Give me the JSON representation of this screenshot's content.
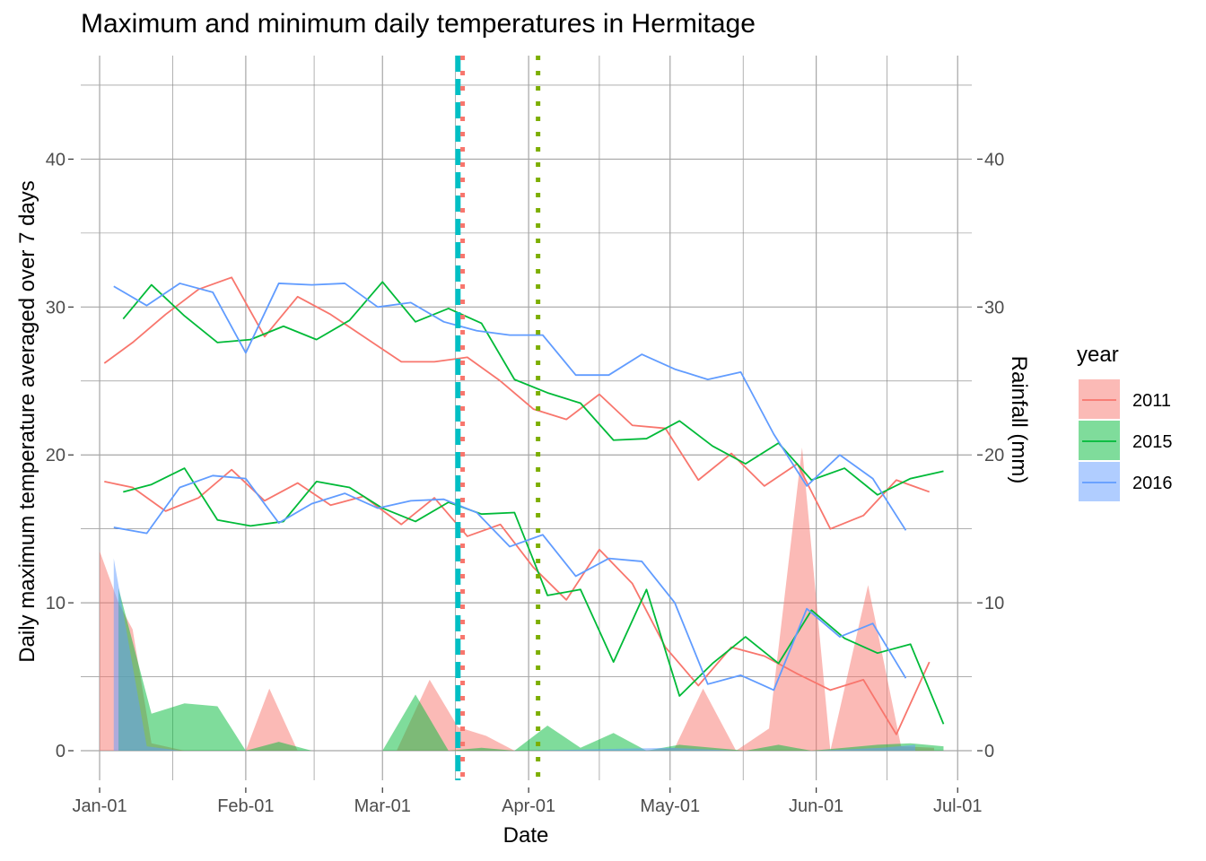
{
  "chart_data": {
    "type": "line",
    "title": "Maximum and minimum daily temperatures in Hermitage",
    "xlabel": "Date",
    "ylabel": "Daily maximum temperature averaged over 7 days",
    "y2label": "Rainfall (mm)",
    "x_axis": {
      "type": "date",
      "range": [
        "2015-12-28",
        "2016-07-04"
      ],
      "ticks": [
        {
          "date": "2016-01-01",
          "label": "Jan-01"
        },
        {
          "date": "2016-02-01",
          "label": "Feb-01"
        },
        {
          "date": "2016-03-01",
          "label": "Mar-01"
        },
        {
          "date": "2016-04-01",
          "label": "Apr-01"
        },
        {
          "date": "2016-05-01",
          "label": "May-01"
        },
        {
          "date": "2016-06-01",
          "label": "Jun-01"
        },
        {
          "date": "2016-07-01",
          "label": "Jul-01"
        }
      ]
    },
    "y_axis": {
      "range": [
        -2,
        47
      ],
      "ticks": [
        0,
        10,
        20,
        30,
        40
      ]
    },
    "y2_axis": {
      "range": [
        -2,
        47
      ],
      "ticks": [
        0,
        10,
        20,
        30,
        40
      ]
    },
    "grid": true,
    "legend": {
      "title": "year",
      "position": "right",
      "entries": [
        {
          "label": "2011",
          "color": "#F8766D"
        },
        {
          "label": "2015",
          "color": "#00BA38"
        },
        {
          "label": "2016",
          "color": "#619CFF"
        }
      ]
    },
    "vlines": [
      {
        "date": "2016-03-17",
        "color": "#00BFC4",
        "style": "dashed"
      },
      {
        "date": "2016-03-18",
        "color": "#F8766D",
        "style": "dotted"
      },
      {
        "date": "2016-04-03",
        "color": "#7CAE00",
        "style": "dotted"
      }
    ],
    "series": [
      {
        "name": "2011",
        "kind": "max",
        "color": "#F8766D",
        "points": [
          [
            "2016-01-02",
            26.2
          ],
          [
            "2016-01-08",
            27.6
          ],
          [
            "2016-01-15",
            29.5
          ],
          [
            "2016-01-22",
            31.2
          ],
          [
            "2016-01-29",
            32.0
          ],
          [
            "2016-02-05",
            28.0
          ],
          [
            "2016-02-12",
            30.7
          ],
          [
            "2016-02-19",
            29.5
          ],
          [
            "2016-02-26",
            28.0
          ],
          [
            "2016-03-05",
            26.3
          ],
          [
            "2016-03-12",
            26.3
          ],
          [
            "2016-03-19",
            26.6
          ],
          [
            "2016-03-26",
            25.0
          ],
          [
            "2016-04-02",
            23.1
          ],
          [
            "2016-04-09",
            22.4
          ],
          [
            "2016-04-16",
            24.1
          ],
          [
            "2016-04-23",
            22.0
          ],
          [
            "2016-04-30",
            21.8
          ],
          [
            "2016-05-07",
            18.3
          ],
          [
            "2016-05-14",
            20.1
          ],
          [
            "2016-05-21",
            17.9
          ],
          [
            "2016-05-28",
            19.4
          ],
          [
            "2016-06-04",
            15.0
          ],
          [
            "2016-06-11",
            15.9
          ],
          [
            "2016-06-18",
            18.3
          ],
          [
            "2016-06-25",
            17.5
          ]
        ]
      },
      {
        "name": "2015",
        "kind": "max",
        "color": "#00BA38",
        "points": [
          [
            "2016-01-06",
            29.2
          ],
          [
            "2016-01-12",
            31.5
          ],
          [
            "2016-01-19",
            29.4
          ],
          [
            "2016-01-26",
            27.6
          ],
          [
            "2016-02-02",
            27.8
          ],
          [
            "2016-02-09",
            28.7
          ],
          [
            "2016-02-16",
            27.8
          ],
          [
            "2016-02-23",
            29.1
          ],
          [
            "2016-03-01",
            31.7
          ],
          [
            "2016-03-08",
            29.0
          ],
          [
            "2016-03-15",
            29.9
          ],
          [
            "2016-03-22",
            28.9
          ],
          [
            "2016-03-29",
            25.1
          ],
          [
            "2016-04-05",
            24.2
          ],
          [
            "2016-04-12",
            23.5
          ],
          [
            "2016-04-19",
            21.0
          ],
          [
            "2016-04-26",
            21.1
          ],
          [
            "2016-05-03",
            22.3
          ],
          [
            "2016-05-10",
            20.6
          ],
          [
            "2016-05-17",
            19.4
          ],
          [
            "2016-05-24",
            20.8
          ],
          [
            "2016-05-31",
            18.3
          ],
          [
            "2016-06-07",
            19.1
          ],
          [
            "2016-06-14",
            17.3
          ],
          [
            "2016-06-21",
            18.4
          ],
          [
            "2016-06-28",
            18.9
          ]
        ]
      },
      {
        "name": "2016",
        "kind": "max",
        "color": "#619CFF",
        "points": [
          [
            "2016-01-04",
            31.4
          ],
          [
            "2016-01-11",
            30.1
          ],
          [
            "2016-01-18",
            31.6
          ],
          [
            "2016-01-25",
            31.0
          ],
          [
            "2016-02-01",
            26.9
          ],
          [
            "2016-02-08",
            31.6
          ],
          [
            "2016-02-15",
            31.5
          ],
          [
            "2016-02-22",
            31.6
          ],
          [
            "2016-02-29",
            30.0
          ],
          [
            "2016-03-07",
            30.3
          ],
          [
            "2016-03-14",
            29.0
          ],
          [
            "2016-03-21",
            28.4
          ],
          [
            "2016-03-28",
            28.1
          ],
          [
            "2016-04-04",
            28.1
          ],
          [
            "2016-04-11",
            25.4
          ],
          [
            "2016-04-18",
            25.4
          ],
          [
            "2016-04-25",
            26.8
          ],
          [
            "2016-05-02",
            25.8
          ],
          [
            "2016-05-09",
            25.1
          ],
          [
            "2016-05-16",
            25.6
          ],
          [
            "2016-05-23",
            21.4
          ],
          [
            "2016-05-30",
            17.9
          ],
          [
            "2016-06-06",
            20.0
          ],
          [
            "2016-06-13",
            18.4
          ],
          [
            "2016-06-20",
            14.9
          ]
        ]
      },
      {
        "name": "2011",
        "kind": "min",
        "color": "#F8766D",
        "points": [
          [
            "2016-01-02",
            18.2
          ],
          [
            "2016-01-08",
            17.8
          ],
          [
            "2016-01-15",
            16.2
          ],
          [
            "2016-01-22",
            17.1
          ],
          [
            "2016-01-29",
            19.0
          ],
          [
            "2016-02-05",
            16.9
          ],
          [
            "2016-02-12",
            18.1
          ],
          [
            "2016-02-19",
            16.6
          ],
          [
            "2016-02-26",
            17.2
          ],
          [
            "2016-03-05",
            15.3
          ],
          [
            "2016-03-12",
            17.1
          ],
          [
            "2016-03-19",
            14.5
          ],
          [
            "2016-03-26",
            15.3
          ],
          [
            "2016-04-02",
            12.4
          ],
          [
            "2016-04-09",
            10.2
          ],
          [
            "2016-04-16",
            13.6
          ],
          [
            "2016-04-23",
            11.3
          ],
          [
            "2016-04-30",
            7.0
          ],
          [
            "2016-05-07",
            4.4
          ],
          [
            "2016-05-14",
            7.0
          ],
          [
            "2016-05-21",
            6.4
          ],
          [
            "2016-05-28",
            5.2
          ],
          [
            "2016-06-04",
            4.1
          ],
          [
            "2016-06-11",
            4.8
          ],
          [
            "2016-06-18",
            1.1
          ],
          [
            "2016-06-25",
            6.0
          ]
        ]
      },
      {
        "name": "2015",
        "kind": "min",
        "color": "#00BA38",
        "points": [
          [
            "2016-01-06",
            17.5
          ],
          [
            "2016-01-12",
            18.0
          ],
          [
            "2016-01-19",
            19.1
          ],
          [
            "2016-01-26",
            15.6
          ],
          [
            "2016-02-02",
            15.2
          ],
          [
            "2016-02-09",
            15.5
          ],
          [
            "2016-02-16",
            18.2
          ],
          [
            "2016-02-23",
            17.8
          ],
          [
            "2016-03-01",
            16.4
          ],
          [
            "2016-03-08",
            15.5
          ],
          [
            "2016-03-15",
            16.8
          ],
          [
            "2016-03-22",
            16.0
          ],
          [
            "2016-03-29",
            16.1
          ],
          [
            "2016-04-05",
            10.5
          ],
          [
            "2016-04-12",
            10.9
          ],
          [
            "2016-04-19",
            6.0
          ],
          [
            "2016-04-26",
            10.9
          ],
          [
            "2016-05-03",
            3.7
          ],
          [
            "2016-05-10",
            5.9
          ],
          [
            "2016-05-17",
            7.7
          ],
          [
            "2016-05-24",
            5.9
          ],
          [
            "2016-05-31",
            9.5
          ],
          [
            "2016-06-07",
            7.6
          ],
          [
            "2016-06-14",
            6.6
          ],
          [
            "2016-06-21",
            7.2
          ],
          [
            "2016-06-28",
            1.8
          ]
        ]
      },
      {
        "name": "2016",
        "kind": "min",
        "color": "#619CFF",
        "points": [
          [
            "2016-01-04",
            15.1
          ],
          [
            "2016-01-11",
            14.7
          ],
          [
            "2016-01-18",
            17.8
          ],
          [
            "2016-01-25",
            18.6
          ],
          [
            "2016-02-01",
            18.4
          ],
          [
            "2016-02-08",
            15.4
          ],
          [
            "2016-02-15",
            16.7
          ],
          [
            "2016-02-22",
            17.4
          ],
          [
            "2016-02-29",
            16.4
          ],
          [
            "2016-03-07",
            16.9
          ],
          [
            "2016-03-14",
            17.0
          ],
          [
            "2016-03-21",
            16.1
          ],
          [
            "2016-03-28",
            13.8
          ],
          [
            "2016-04-04",
            14.6
          ],
          [
            "2016-04-11",
            11.8
          ],
          [
            "2016-04-18",
            13.0
          ],
          [
            "2016-04-25",
            12.8
          ],
          [
            "2016-05-02",
            10.0
          ],
          [
            "2016-05-09",
            4.5
          ],
          [
            "2016-05-16",
            5.1
          ],
          [
            "2016-05-23",
            4.1
          ],
          [
            "2016-05-30",
            9.6
          ],
          [
            "2016-06-06",
            7.7
          ],
          [
            "2016-06-13",
            8.6
          ],
          [
            "2016-06-20",
            4.9
          ]
        ]
      }
    ],
    "rainfall": [
      {
        "name": "2011",
        "color": "#F8766D",
        "points": [
          [
            "2016-01-01",
            13.5
          ],
          [
            "2016-01-05",
            10.0
          ],
          [
            "2016-01-08",
            8.2
          ],
          [
            "2016-01-12",
            0.5
          ],
          [
            "2016-01-19",
            0
          ],
          [
            "2016-01-26",
            0
          ],
          [
            "2016-02-01",
            0
          ],
          [
            "2016-02-06",
            4.2
          ],
          [
            "2016-02-12",
            0
          ],
          [
            "2016-02-19",
            0
          ],
          [
            "2016-02-26",
            0
          ],
          [
            "2016-03-04",
            0
          ],
          [
            "2016-03-11",
            4.8
          ],
          [
            "2016-03-17",
            1.6
          ],
          [
            "2016-03-23",
            1.0
          ],
          [
            "2016-03-29",
            0
          ],
          [
            "2016-04-05",
            0
          ],
          [
            "2016-04-12",
            0
          ],
          [
            "2016-04-19",
            0
          ],
          [
            "2016-04-26",
            0
          ],
          [
            "2016-05-02",
            0.2
          ],
          [
            "2016-05-08",
            4.2
          ],
          [
            "2016-05-15",
            0
          ],
          [
            "2016-05-22",
            1.5
          ],
          [
            "2016-05-29",
            20.5
          ],
          [
            "2016-06-04",
            0
          ],
          [
            "2016-06-12",
            11.2
          ],
          [
            "2016-06-19",
            0.3
          ],
          [
            "2016-06-26",
            0.2
          ]
        ]
      },
      {
        "name": "2015",
        "color": "#00BA38",
        "points": [
          [
            "2016-01-05",
            11.0
          ],
          [
            "2016-01-12",
            2.5
          ],
          [
            "2016-01-19",
            3.2
          ],
          [
            "2016-01-26",
            3.0
          ],
          [
            "2016-02-01",
            0
          ],
          [
            "2016-02-08",
            0.6
          ],
          [
            "2016-02-15",
            0
          ],
          [
            "2016-02-22",
            0
          ],
          [
            "2016-03-01",
            0
          ],
          [
            "2016-03-08",
            3.8
          ],
          [
            "2016-03-15",
            0
          ],
          [
            "2016-03-22",
            0.2
          ],
          [
            "2016-03-29",
            0
          ],
          [
            "2016-04-05",
            1.7
          ],
          [
            "2016-04-12",
            0.2
          ],
          [
            "2016-04-19",
            1.2
          ],
          [
            "2016-04-26",
            0
          ],
          [
            "2016-05-03",
            0.4
          ],
          [
            "2016-05-10",
            0.2
          ],
          [
            "2016-05-17",
            0
          ],
          [
            "2016-05-24",
            0.4
          ],
          [
            "2016-05-31",
            0
          ],
          [
            "2016-06-07",
            0.2
          ],
          [
            "2016-06-14",
            0.4
          ],
          [
            "2016-06-21",
            0.5
          ],
          [
            "2016-06-28",
            0.3
          ]
        ]
      },
      {
        "name": "2016",
        "color": "#619CFF",
        "points": [
          [
            "2016-01-04",
            13.0
          ],
          [
            "2016-01-11",
            0.3
          ],
          [
            "2016-01-18",
            0
          ],
          [
            "2016-01-25",
            0
          ],
          [
            "2016-02-01",
            0
          ],
          [
            "2016-02-15",
            0
          ],
          [
            "2016-03-01",
            0
          ],
          [
            "2016-03-15",
            0
          ],
          [
            "2016-04-01",
            0
          ],
          [
            "2016-04-15",
            0.1
          ],
          [
            "2016-05-01",
            0.2
          ],
          [
            "2016-05-15",
            0
          ],
          [
            "2016-06-01",
            0
          ],
          [
            "2016-06-15",
            0.2
          ],
          [
            "2016-06-22",
            0.4
          ]
        ]
      }
    ]
  }
}
